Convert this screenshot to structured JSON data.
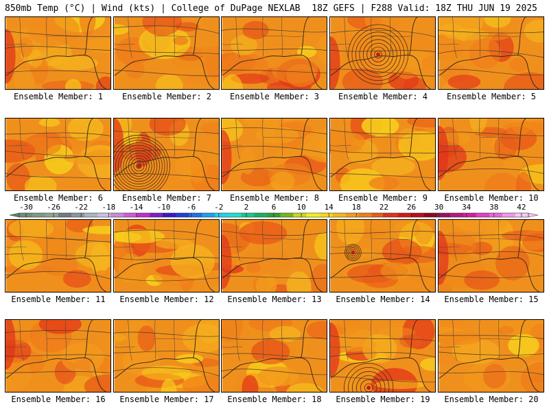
{
  "header": {
    "left": "850mb Temp (°C) | Wind (kts) | College of DuPage NEXLAB",
    "right": "18Z GEFS | F288 Valid: 18Z THU JUN 19 2025"
  },
  "panels": [
    {
      "label": "Ensemble Member: 1",
      "cyclone": null
    },
    {
      "label": "Ensemble Member: 2",
      "cyclone": null
    },
    {
      "label": "Ensemble Member: 3",
      "cyclone": null
    },
    {
      "label": "Ensemble Member: 4",
      "cyclone": "strong-central-gulf"
    },
    {
      "label": "Ensemble Member: 5",
      "cyclone": null
    },
    {
      "label": "Ensemble Member: 6",
      "cyclone": null
    },
    {
      "label": "Ensemble Member: 7",
      "cyclone": "intense-western-gulf"
    },
    {
      "label": "Ensemble Member: 8",
      "cyclone": null
    },
    {
      "label": "Ensemble Member: 9",
      "cyclone": null
    },
    {
      "label": "Ensemble Member: 10",
      "cyclone": null
    },
    {
      "label": "Ensemble Member: 11",
      "cyclone": null
    },
    {
      "label": "Ensemble Member: 12",
      "cyclone": null
    },
    {
      "label": "Ensemble Member: 13",
      "cyclone": null
    },
    {
      "label": "Ensemble Member: 14",
      "cyclone": "compact-western-gulf"
    },
    {
      "label": "Ensemble Member: 15",
      "cyclone": null
    },
    {
      "label": "Ensemble Member: 16",
      "cyclone": null
    },
    {
      "label": "Ensemble Member: 17",
      "cyclone": null
    },
    {
      "label": "Ensemble Member: 18",
      "cyclone": null
    },
    {
      "label": "Ensemble Member: 19",
      "cyclone": "southern-gulf"
    },
    {
      "label": "Ensemble Member: 20",
      "cyclone": null
    }
  ],
  "colorbar": {
    "ticks": [
      "-30",
      "-26",
      "-22",
      "-18",
      "-14",
      "-10",
      "-6",
      "-2",
      "2",
      "6",
      "10",
      "14",
      "18",
      "22",
      "26",
      "30",
      "34",
      "38",
      "42"
    ],
    "colors": [
      "#6f8f7a",
      "#7d9a88",
      "#8aa596",
      "#6f7a86",
      "#8996a4",
      "#a7b5c8",
      "#c9c0e8",
      "#c78bd8",
      "#d25ad8",
      "#c52bd0",
      "#7f1fc8",
      "#3a18c8",
      "#1f3fd8",
      "#1f6fe8",
      "#1aa0f0",
      "#22d0f0",
      "#22e0c8",
      "#18c890",
      "#18b060",
      "#30a030",
      "#74b81a",
      "#c8d81a",
      "#f0f020",
      "#f8d818",
      "#f5b818",
      "#f49a18",
      "#ef7f1a",
      "#ea5a18",
      "#e33018",
      "#d41818",
      "#b8101a",
      "#8a0a20",
      "#9a1060",
      "#b81880",
      "#d020a0",
      "#e040c0",
      "#e868d8",
      "#f098e8",
      "#f5c8f5"
    ]
  }
}
